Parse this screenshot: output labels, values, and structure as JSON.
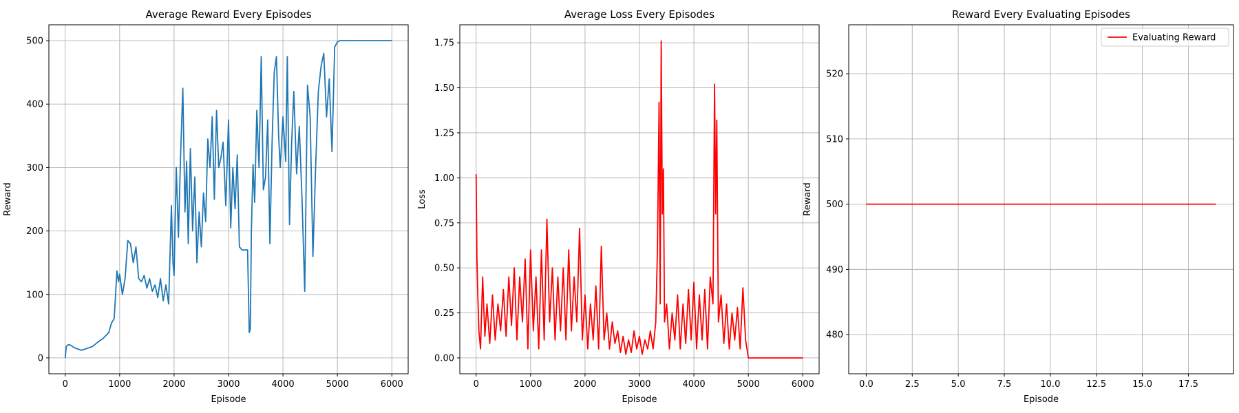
{
  "chart_data": [
    {
      "type": "line",
      "title": "Average Reward Every Episodes",
      "xlabel": "Episode",
      "ylabel": "Reward",
      "xlim": [
        -300,
        6300
      ],
      "ylim": [
        -25,
        525
      ],
      "xticks": [
        0,
        1000,
        2000,
        3000,
        4000,
        5000,
        6000
      ],
      "yticks": [
        0,
        100,
        200,
        300,
        400,
        500
      ],
      "grid": true,
      "series": [
        {
          "color": "#1f77b4",
          "x": [
            0,
            20,
            60,
            100,
            150,
            200,
            300,
            400,
            500,
            600,
            700,
            800,
            850,
            900,
            950,
            980,
            1000,
            1050,
            1100,
            1150,
            1200,
            1250,
            1300,
            1350,
            1400,
            1450,
            1500,
            1550,
            1600,
            1650,
            1700,
            1750,
            1800,
            1850,
            1900,
            1950,
            1980,
            2000,
            2040,
            2080,
            2120,
            2160,
            2200,
            2230,
            2260,
            2300,
            2340,
            2380,
            2420,
            2460,
            2500,
            2540,
            2580,
            2620,
            2660,
            2700,
            2740,
            2780,
            2820,
            2860,
            2900,
            2950,
            3000,
            3040,
            3080,
            3120,
            3160,
            3200,
            3250,
            3300,
            3350,
            3380,
            3400,
            3420,
            3450,
            3480,
            3520,
            3560,
            3600,
            3640,
            3680,
            3720,
            3760,
            3800,
            3840,
            3880,
            3920,
            3950,
            4000,
            4050,
            4080,
            4120,
            4160,
            4200,
            4250,
            4300,
            4350,
            4400,
            4450,
            4500,
            4550,
            4600,
            4650,
            4700,
            4750,
            4800,
            4850,
            4900,
            4950,
            5000,
            5050,
            5100,
            5200,
            5500,
            6000
          ],
          "values": [
            0,
            18,
            21,
            20,
            17,
            15,
            12,
            15,
            18,
            25,
            31,
            40,
            55,
            62,
            137,
            120,
            132,
            100,
            125,
            185,
            180,
            150,
            175,
            125,
            120,
            130,
            110,
            125,
            105,
            115,
            95,
            125,
            90,
            115,
            85,
            240,
            150,
            130,
            300,
            190,
            320,
            425,
            230,
            310,
            180,
            330,
            200,
            285,
            150,
            230,
            175,
            260,
            215,
            345,
            300,
            380,
            250,
            390,
            300,
            315,
            340,
            240,
            375,
            205,
            300,
            235,
            320,
            175,
            170,
            170,
            170,
            40,
            45,
            200,
            305,
            245,
            390,
            300,
            475,
            265,
            285,
            375,
            180,
            340,
            450,
            475,
            350,
            300,
            380,
            310,
            475,
            210,
            340,
            420,
            290,
            365,
            250,
            105,
            430,
            380,
            160,
            300,
            420,
            460,
            480,
            380,
            440,
            325,
            490,
            498,
            500,
            500,
            500,
            500,
            500
          ]
        }
      ]
    },
    {
      "type": "line",
      "title": "Average Loss Every Episodes",
      "xlabel": "Episode",
      "ylabel": "Loss",
      "xlim": [
        -300,
        6300
      ],
      "ylim": [
        -0.088,
        1.85
      ],
      "xticks": [
        0,
        1000,
        2000,
        3000,
        4000,
        5000,
        6000
      ],
      "yticks": [
        0.0,
        0.25,
        0.5,
        0.75,
        1.0,
        1.25,
        1.5,
        1.75
      ],
      "grid": true,
      "series": [
        {
          "color": "#ff0000",
          "x": [
            0,
            15,
            30,
            50,
            80,
            120,
            160,
            200,
            250,
            300,
            350,
            400,
            450,
            500,
            550,
            600,
            650,
            700,
            750,
            800,
            850,
            900,
            950,
            1000,
            1050,
            1100,
            1150,
            1200,
            1250,
            1300,
            1350,
            1400,
            1450,
            1500,
            1550,
            1600,
            1650,
            1700,
            1750,
            1800,
            1850,
            1900,
            1950,
            2000,
            2050,
            2100,
            2150,
            2200,
            2250,
            2300,
            2350,
            2400,
            2450,
            2500,
            2550,
            2600,
            2650,
            2700,
            2750,
            2800,
            2850,
            2900,
            2950,
            3000,
            3050,
            3100,
            3150,
            3200,
            3250,
            3300,
            3330,
            3360,
            3380,
            3400,
            3420,
            3440,
            3460,
            3500,
            3550,
            3600,
            3650,
            3700,
            3750,
            3800,
            3850,
            3900,
            3950,
            4000,
            4050,
            4100,
            4150,
            4200,
            4250,
            4300,
            4350,
            4380,
            4400,
            4420,
            4450,
            4500,
            4550,
            4600,
            4650,
            4700,
            4750,
            4800,
            4850,
            4900,
            4950,
            5000,
            5500,
            6000
          ],
          "values": [
            1.02,
            0.55,
            0.35,
            0.15,
            0.05,
            0.45,
            0.12,
            0.3,
            0.08,
            0.35,
            0.1,
            0.3,
            0.15,
            0.38,
            0.12,
            0.45,
            0.18,
            0.5,
            0.1,
            0.45,
            0.2,
            0.55,
            0.05,
            0.6,
            0.15,
            0.45,
            0.05,
            0.6,
            0.1,
            0.77,
            0.2,
            0.5,
            0.1,
            0.45,
            0.15,
            0.5,
            0.1,
            0.6,
            0.15,
            0.45,
            0.2,
            0.72,
            0.1,
            0.35,
            0.05,
            0.3,
            0.1,
            0.4,
            0.05,
            0.62,
            0.1,
            0.25,
            0.05,
            0.2,
            0.08,
            0.15,
            0.03,
            0.12,
            0.02,
            0.1,
            0.03,
            0.15,
            0.05,
            0.12,
            0.02,
            0.1,
            0.05,
            0.15,
            0.05,
            0.2,
            0.6,
            1.42,
            0.3,
            1.76,
            0.8,
            1.05,
            0.2,
            0.3,
            0.05,
            0.25,
            0.1,
            0.35,
            0.05,
            0.3,
            0.08,
            0.38,
            0.1,
            0.42,
            0.05,
            0.35,
            0.1,
            0.38,
            0.05,
            0.45,
            0.3,
            1.52,
            0.8,
            1.32,
            0.2,
            0.35,
            0.08,
            0.3,
            0.05,
            0.25,
            0.1,
            0.28,
            0.05,
            0.39,
            0.1,
            0.0,
            0.0,
            0.0
          ]
        }
      ]
    },
    {
      "type": "line",
      "title": "Reward Every Evaluating Episodes",
      "xlabel": "Episode",
      "ylabel": "Reward",
      "xlim": [
        -0.95,
        19.95
      ],
      "ylim": [
        474.0,
        527.5
      ],
      "xticks": [
        0.0,
        2.5,
        5.0,
        7.5,
        10.0,
        12.5,
        15.0,
        17.5
      ],
      "yticks": [
        480,
        490,
        500,
        510,
        520
      ],
      "grid": true,
      "legend": "top-right",
      "series": [
        {
          "name": "Evaluating Reward",
          "color": "#ff0000",
          "x": [
            0,
            19
          ],
          "values": [
            500,
            500
          ]
        }
      ]
    }
  ]
}
